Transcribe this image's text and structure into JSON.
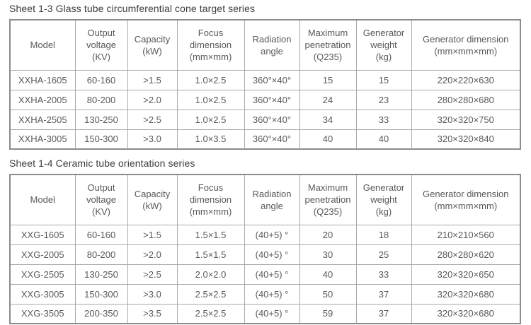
{
  "colors": {
    "text": "#595959",
    "title_text": "#3d3d3d",
    "border_inner": "#a9a9a9",
    "border_outer": "#8b8b8b",
    "background": "#ffffff"
  },
  "tables": [
    {
      "title": "Sheet 1-3 Glass tube circumferential cone target series",
      "headers": [
        "Model",
        "Output\nvoltage\n(KV)",
        "Capacity\n(kW)",
        "Focus\ndimension\n(mm×mm)",
        "Radiation\nangle",
        "Maximum\npenetration\n(Q235)",
        "Generator\nweight\n(kg)",
        "Generator dimension\n(mm×mm×mm)"
      ],
      "rows": [
        [
          "XXHA-1605",
          "60-160",
          ">1.5",
          "1.0×2.5",
          "360°×40°",
          "15",
          "15",
          "220×220×630"
        ],
        [
          "XXHA-2005",
          "80-200",
          ">2.0",
          "1.0×2.5",
          "360°×40°",
          "24",
          "23",
          "280×280×680"
        ],
        [
          "XXHA-2505",
          "130-250",
          ">2.5",
          "1.0×2.5",
          "360°×40°",
          "34",
          "33",
          "320×320×750"
        ],
        [
          "XXHA-3005",
          "150-300",
          ">3.0",
          "1.0×3.5",
          "360°×40°",
          "40",
          "40",
          "320×320×840"
        ]
      ]
    },
    {
      "title": "Sheet 1-4 Ceramic tube orientation series",
      "headers": [
        "Model",
        "Output\nvoltage\n(KV)",
        "Capacity\n(kW)",
        "Focus\ndimension\n(mm×mm)",
        "Radiation\nangle",
        "Maximum\npenetration\n(Q235)",
        "Generator\nweight\n(kg)",
        "Generator dimension\n(mm×mm×mm)"
      ],
      "rows": [
        [
          "XXG-1605",
          "60-160",
          ">1.5",
          "1.5×1.5",
          "(40+5) °",
          "20",
          "18",
          "210×210×560"
        ],
        [
          "XXG-2005",
          "80-200",
          ">2.0",
          "1.5×1.5",
          "(40+5) °",
          "30",
          "25",
          "280×280×620"
        ],
        [
          "XXG-2505",
          "130-250",
          ">2.5",
          "2.0×2.0",
          "(40+5) °",
          "40",
          "33",
          "320×320×650"
        ],
        [
          "XXG-3005",
          "150-300",
          ">3.0",
          "2.5×2.5",
          "(40+5) °",
          "50",
          "37",
          "320×320×680"
        ],
        [
          "XXG-3505",
          "200-350",
          ">3.5",
          "2.5×2.5",
          "(40+5) °",
          "59",
          "37",
          "320×320×680"
        ]
      ]
    }
  ]
}
